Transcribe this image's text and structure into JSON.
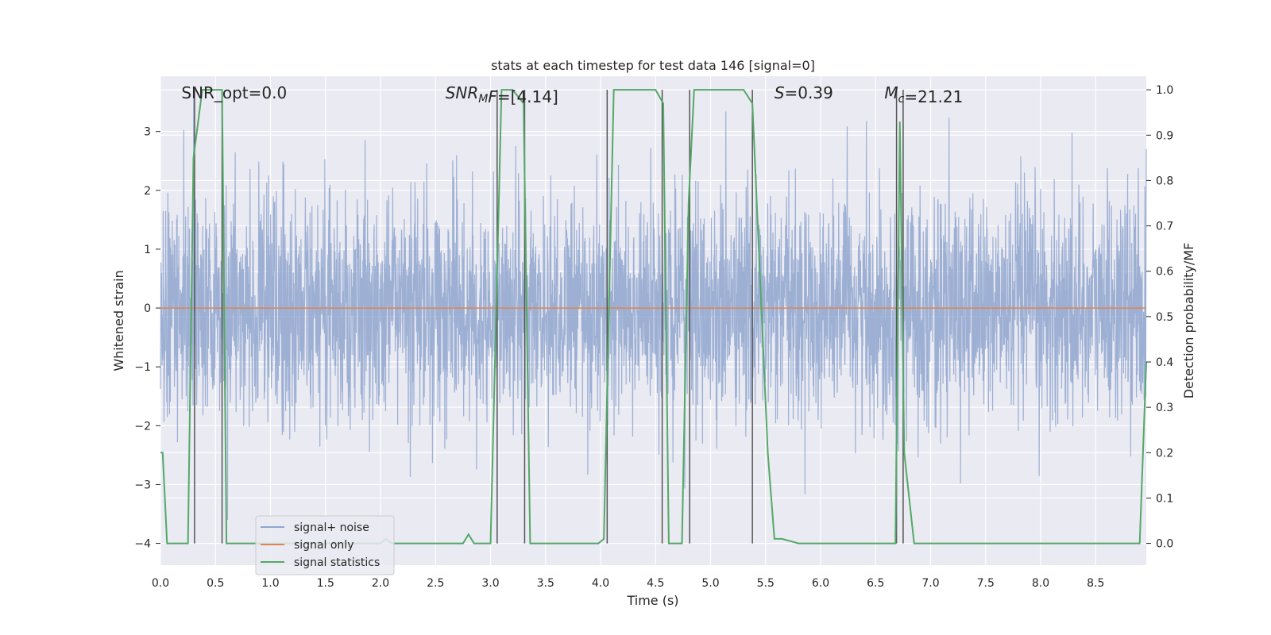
{
  "chart_data": {
    "type": "line",
    "title": "stats at each timestep for test data 146 [signal=0]",
    "xlabel": "Time (s)",
    "ylabel_left": "Whitened strain",
    "ylabel_right": "Detection probability/MF",
    "xlim": [
      0.0,
      8.96
    ],
    "ylim_left": [
      -4.37,
      3.94
    ],
    "ylim_right": [
      -0.048,
      1.03
    ],
    "x_ticks": [
      0.0,
      0.5,
      1.0,
      1.5,
      2.0,
      2.5,
      3.0,
      3.5,
      4.0,
      4.5,
      5.0,
      5.5,
      6.0,
      6.5,
      7.0,
      7.5,
      8.0,
      8.5
    ],
    "x_tick_labels": [
      "0.0",
      "0.5",
      "1.0",
      "1.5",
      "2.0",
      "2.5",
      "3.0",
      "3.5",
      "4.0",
      "4.5",
      "5.0",
      "5.5",
      "6.0",
      "6.5",
      "7.0",
      "7.5",
      "8.0",
      "8.5"
    ],
    "y_left_ticks": [
      -4,
      -3,
      -2,
      -1,
      0,
      1,
      2,
      3
    ],
    "y_left_tick_labels": [
      "−4",
      "−3",
      "−2",
      "−1",
      "0",
      "1",
      "2",
      "3"
    ],
    "y_right_ticks": [
      0.0,
      0.1,
      0.2,
      0.3,
      0.4,
      0.5,
      0.6,
      0.7,
      0.8,
      0.9,
      1.0
    ],
    "y_right_tick_labels": [
      "0.0",
      "0.1",
      "0.2",
      "0.3",
      "0.4",
      "0.5",
      "0.6",
      "0.7",
      "0.8",
      "0.9",
      "1.0"
    ],
    "grid": true,
    "annotations": [
      {
        "parts": [
          {
            "text": "SNR_opt=0.0",
            "italic": false
          }
        ],
        "x": 0.19
      },
      {
        "parts": [
          {
            "text": "SNR",
            "italic": true
          },
          {
            "text": "M",
            "italic": true,
            "sub": true
          },
          {
            "text": "F",
            "italic": true
          },
          {
            "text": "=[4.14]",
            "italic": false
          }
        ],
        "x": 2.59
      },
      {
        "parts": [
          {
            "text": "S",
            "italic": true
          },
          {
            "text": "=0.39",
            "italic": false
          }
        ],
        "x": 5.58
      },
      {
        "parts": [
          {
            "text": "M",
            "italic": true
          },
          {
            "text": "c",
            "italic": true,
            "sub": true
          },
          {
            "text": "=21.21",
            "italic": false
          }
        ],
        "x": 6.58
      }
    ],
    "vertical_lines_x": [
      0.31,
      0.56,
      3.06,
      3.31,
      4.06,
      4.56,
      4.81,
      5.38,
      6.69,
      6.75
    ],
    "series": [
      {
        "name": "signal+ noise",
        "color": "#8fa6cf",
        "axis": "left",
        "kind": "noise",
        "std": 0.95,
        "envelope": [
          -3.6,
          3.55
        ],
        "samples": 3600
      },
      {
        "name": "signal only",
        "color": "#dd8452",
        "axis": "left",
        "x": [
          0.0,
          8.96
        ],
        "y": [
          0.0,
          0.0
        ]
      },
      {
        "name": "signal statistics",
        "color": "#55a868",
        "axis": "right",
        "x": [
          0.0,
          0.02,
          0.06,
          0.25,
          0.3,
          0.38,
          0.56,
          0.6,
          0.7,
          2.0,
          2.05,
          2.1,
          2.75,
          2.8,
          2.85,
          3.0,
          3.1,
          3.2,
          3.3,
          3.36,
          3.45,
          3.98,
          4.03,
          4.12,
          4.5,
          4.57,
          4.62,
          4.74,
          4.8,
          4.85,
          5.3,
          5.38,
          5.52,
          5.58,
          5.65,
          5.8,
          6.5,
          6.68,
          6.72,
          6.76,
          6.85,
          8.9,
          8.96
        ],
        "y": [
          0.2,
          0.2,
          0.0,
          0.0,
          0.85,
          1.0,
          1.0,
          0.0,
          0.0,
          0.0,
          0.01,
          0.0,
          0.0,
          0.02,
          0.0,
          0.0,
          1.0,
          1.0,
          0.97,
          0.0,
          0.0,
          0.0,
          0.01,
          1.0,
          1.0,
          0.97,
          0.0,
          0.0,
          0.75,
          1.0,
          1.0,
          0.97,
          0.2,
          0.01,
          0.01,
          0.0,
          0.0,
          0.0,
          0.93,
          0.2,
          0.0,
          0.0,
          0.4
        ]
      }
    ]
  }
}
